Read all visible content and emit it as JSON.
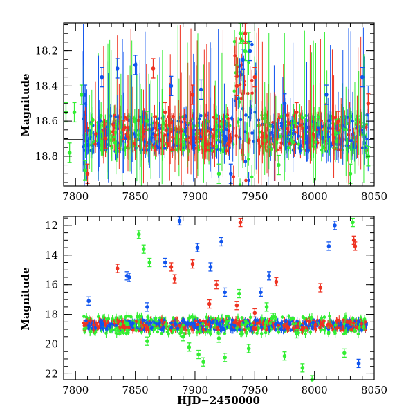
{
  "colors": {
    "green": "#33ee33",
    "blue": "#1155ee",
    "red": "#ee3322",
    "axis": "#000000"
  },
  "chart_data": [
    {
      "type": "scatter",
      "title": "",
      "xlabel": "",
      "ylabel": "Magnitude",
      "xlim": [
        7790,
        8050
      ],
      "ylim": [
        18.97,
        18.04
      ],
      "y_inverted": true,
      "error_bars": true,
      "reference_line_y": 18.705,
      "xticks": [
        7800,
        7850,
        7900,
        7950,
        8000,
        8050
      ],
      "xtick_labels": [
        "7800",
        "7850",
        "7900",
        "7950",
        "8000",
        "8050"
      ],
      "yticks": [
        18.2,
        18.4,
        18.6,
        18.8
      ],
      "ytick_labels": [
        "18.2",
        "18.4",
        "18.6",
        "18.8"
      ],
      "series": [
        {
          "color": "green",
          "x": [
            7792,
            7795,
            7799,
            7805,
            7808,
            7860,
            7920,
            7938,
            7942,
            7945,
            7970,
            8030,
            8045
          ],
          "y": [
            18.55,
            18.78,
            18.55,
            18.45,
            18.88,
            18.6,
            18.9,
            18.1,
            18.2,
            18.15,
            18.85,
            18.9,
            18.8
          ]
        },
        {
          "color": "blue",
          "x": [
            7808,
            7822,
            7835,
            7850,
            7880,
            7905,
            7930,
            7940,
            7946,
            7975,
            8010,
            8040
          ],
          "y": [
            18.45,
            18.35,
            18.3,
            18.28,
            18.4,
            18.42,
            18.9,
            18.25,
            18.2,
            18.5,
            18.45,
            18.35
          ]
        },
        {
          "color": "red",
          "x": [
            7810,
            7825,
            7840,
            7865,
            7875,
            7898,
            7935,
            7942,
            7950,
            7985,
            8020,
            8045
          ],
          "y": [
            18.9,
            18.7,
            18.65,
            18.3,
            18.55,
            18.45,
            18.4,
            18.1,
            18.35,
            18.55,
            18.6,
            18.5
          ]
        }
      ]
    },
    {
      "type": "scatter",
      "title": "",
      "xlabel": "HJD−2450000",
      "ylabel": "Magnitude",
      "xlim": [
        7790,
        8050
      ],
      "ylim": [
        22.4,
        11.4
      ],
      "y_inverted": true,
      "error_bars": true,
      "xticks": [
        7800,
        7850,
        7900,
        7950,
        8000,
        8050
      ],
      "xtick_labels": [
        "7800",
        "7850",
        "7900",
        "7950",
        "8000",
        "8050"
      ],
      "yticks": [
        12,
        14,
        16,
        18,
        20,
        22
      ],
      "ytick_labels": [
        "12",
        "14",
        "16",
        "18",
        "20",
        "22"
      ],
      "series": [
        {
          "color": "green",
          "x": [
            7853,
            7857,
            7862,
            7890,
            7895,
            7903,
            7907,
            7937,
            7960,
            7965,
            7975,
            7985,
            7990,
            7998,
            8025,
            8032,
            7860,
            7920,
            7925,
            7945
          ],
          "y": [
            12.6,
            13.6,
            14.5,
            19.5,
            20.2,
            20.7,
            21.2,
            16.6,
            17.5,
            18.2,
            20.8,
            19.3,
            21.6,
            22.4,
            20.6,
            11.8,
            19.8,
            19.6,
            20.9,
            20.3
          ]
        },
        {
          "color": "blue",
          "x": [
            7811,
            7843,
            7845,
            7860,
            7875,
            7887,
            7902,
            7913,
            7922,
            7925,
            7955,
            7962,
            8012,
            8017,
            8037
          ],
          "y": [
            17.1,
            15.4,
            15.5,
            17.5,
            14.5,
            11.7,
            13.5,
            14.8,
            13.1,
            16.5,
            16.5,
            15.4,
            13.4,
            12.0,
            21.3
          ]
        },
        {
          "color": "red",
          "x": [
            7835,
            7880,
            7883,
            7898,
            7912,
            7918,
            7935,
            7938,
            7950,
            7968,
            8005,
            8033,
            8034
          ],
          "y": [
            14.9,
            14.8,
            15.6,
            14.6,
            17.3,
            16.0,
            17.4,
            11.8,
            17.9,
            15.8,
            16.2,
            13.0,
            13.4
          ]
        }
      ]
    }
  ]
}
